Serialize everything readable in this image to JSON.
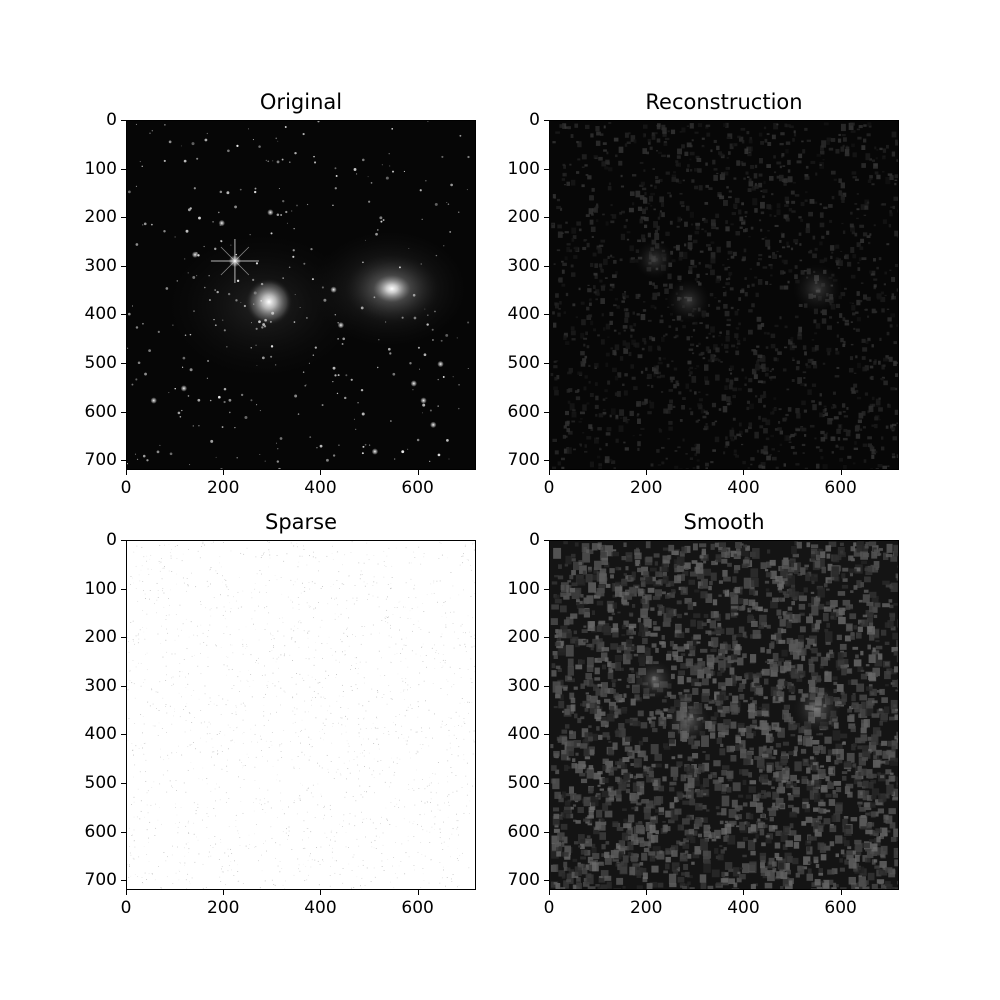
{
  "figure": {
    "panels": [
      {
        "id": "original",
        "title": "Original",
        "content": "galaxy field: bright stars, a spiral galaxy and an elliptical galaxy on dark background",
        "colormap": "gray"
      },
      {
        "id": "reconstruction",
        "title": "Reconstruction",
        "content": "dark noisy grayscale image with faint blobs near the galaxy positions",
        "colormap": "gray"
      },
      {
        "id": "sparse",
        "title": "Sparse",
        "content": "almost white image with sparse faint gray speckles",
        "colormap": "gray"
      },
      {
        "id": "smooth",
        "title": "Smooth",
        "content": "dark blotchy grayscale noise with brighter blobs near the galaxy positions",
        "colormap": "gray"
      }
    ],
    "axes": {
      "x_ticks": [
        "0",
        "200",
        "400",
        "600"
      ],
      "y_ticks": [
        "0",
        "100",
        "200",
        "300",
        "400",
        "500",
        "600",
        "700"
      ],
      "x_range": [
        0,
        720
      ],
      "y_range": [
        0,
        720
      ],
      "y_inverted": true
    }
  }
}
